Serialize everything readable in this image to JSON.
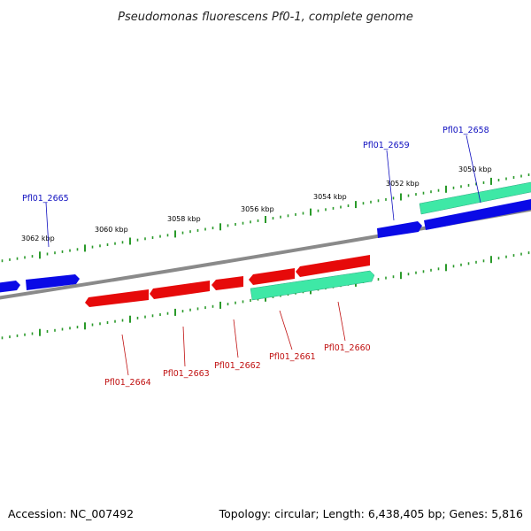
{
  "title": "Pseudomonas fluorescens Pf0-1, complete genome",
  "footer": {
    "accession": "Accession: NC_007492",
    "summary": "Topology: circular; Length: 6,438,405 bp; Genes: 5,816"
  },
  "colors": {
    "forward_gene": "#0a0ae6",
    "reverse_gene": "#e60a0a",
    "rna_gene": "#3ee8a6",
    "backbone": "#8a8a8a",
    "ticks": "#2a9a2a",
    "forward_label": "#1010c0",
    "reverse_label": "#c01010"
  },
  "ticks": [
    {
      "kbp": 3050,
      "label": "3050 kbp"
    },
    {
      "kbp": 3052,
      "label": "3052 kbp"
    },
    {
      "kbp": 3054,
      "label": "3054 kbp"
    },
    {
      "kbp": 3056,
      "label": "3056 kbp"
    },
    {
      "kbp": 3058,
      "label": "3058 kbp"
    },
    {
      "kbp": 3060,
      "label": "3060 kbp"
    },
    {
      "kbp": 3062,
      "label": "3062 kbp"
    }
  ],
  "genes": {
    "forward": [
      {
        "name": "Pfl01_2665",
        "labeled": true
      },
      {
        "name": "Pfl01_2659",
        "labeled": true
      },
      {
        "name": "Pfl01_2658",
        "labeled": true
      }
    ],
    "reverse": [
      {
        "name": "Pfl01_2664",
        "labeled": true
      },
      {
        "name": "Pfl01_2663",
        "labeled": true
      },
      {
        "name": "Pfl01_2662",
        "labeled": true
      },
      {
        "name": "Pfl01_2661",
        "labeled": true
      },
      {
        "name": "Pfl01_2660",
        "labeled": true
      }
    ],
    "rna": [
      {
        "name": "rna-gene-upper"
      },
      {
        "name": "rna-gene-lower"
      }
    ]
  }
}
